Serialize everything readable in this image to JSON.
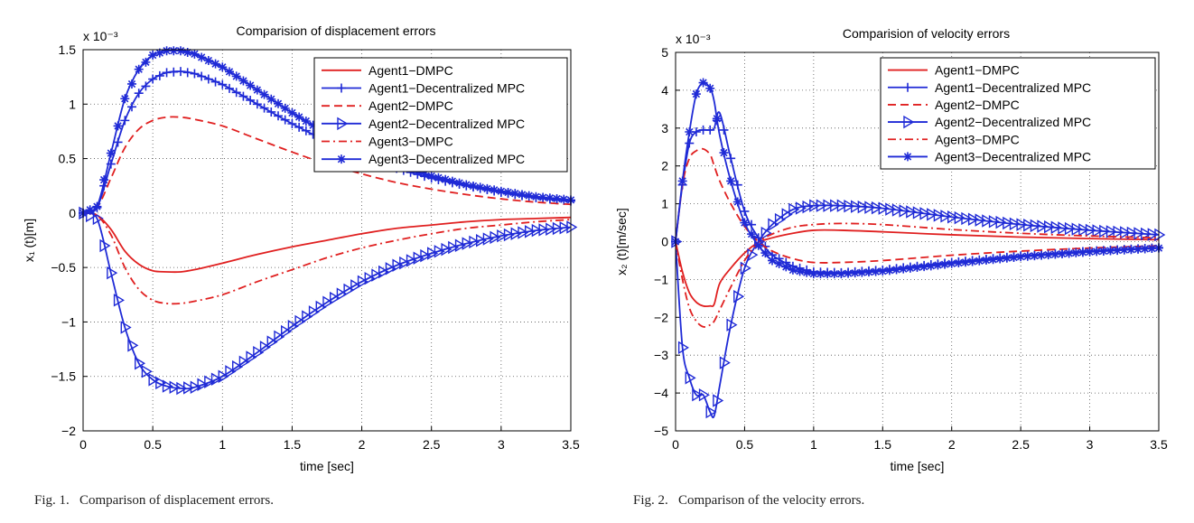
{
  "colors": {
    "dmpc": "#e02020",
    "decentralized": "#1f2ad6",
    "grid": "#555555"
  },
  "captions": {
    "fig1": "Fig. 1.   Comparison of displacement errors.",
    "fig2": "Fig. 2.   Comparison of the velocity errors."
  },
  "chart_data": [
    {
      "type": "line",
      "title": "Comparision of displacement errors",
      "xlabel": "time [sec]",
      "ylabel": "x₁ (t)[m]",
      "exponent_label": "x 10⁻³",
      "xlim": [
        0,
        3.5
      ],
      "ylim": [
        -2,
        1.5
      ],
      "xticks": [
        "0",
        "0.5",
        "1",
        "1.5",
        "2",
        "2.5",
        "3",
        "3.5"
      ],
      "yticks": [
        "-2",
        "-1.5",
        "-1",
        "-0.5",
        "0",
        "0.5",
        "1",
        "1.5"
      ],
      "grid": true,
      "legend_position": "top-right",
      "x": [
        0,
        0.1,
        0.2,
        0.3,
        0.4,
        0.5,
        0.6,
        0.7,
        0.8,
        1.0,
        1.25,
        1.5,
        1.75,
        2.0,
        2.25,
        2.5,
        2.75,
        3.0,
        3.25,
        3.5
      ],
      "series": [
        {
          "name": "Agent1−DMPC",
          "style": "solid",
          "marker": "none",
          "color": "#e02020",
          "values": [
            0,
            -0.02,
            -0.15,
            -0.35,
            -0.47,
            -0.53,
            -0.54,
            -0.54,
            -0.52,
            -0.46,
            -0.38,
            -0.31,
            -0.25,
            -0.19,
            -0.14,
            -0.11,
            -0.08,
            -0.06,
            -0.05,
            -0.04
          ]
        },
        {
          "name": "Agent1−Decentralized MPC",
          "style": "solid",
          "marker": "plus",
          "color": "#1f2ad6",
          "values": [
            0,
            0.05,
            0.45,
            0.85,
            1.1,
            1.23,
            1.29,
            1.3,
            1.28,
            1.18,
            1.0,
            0.82,
            0.66,
            0.52,
            0.41,
            0.32,
            0.25,
            0.19,
            0.14,
            0.11
          ]
        },
        {
          "name": "Agent2−DMPC",
          "style": "dashed",
          "marker": "none",
          "color": "#e02020",
          "values": [
            0,
            0.05,
            0.32,
            0.6,
            0.77,
            0.85,
            0.88,
            0.88,
            0.86,
            0.8,
            0.68,
            0.56,
            0.45,
            0.36,
            0.28,
            0.22,
            0.17,
            0.13,
            0.1,
            0.08
          ]
        },
        {
          "name": "Agent2−Decentralized MPC",
          "style": "solid",
          "marker": "triangle",
          "color": "#1f2ad6",
          "values": [
            0,
            -0.05,
            -0.55,
            -1.05,
            -1.38,
            -1.53,
            -1.59,
            -1.61,
            -1.6,
            -1.5,
            -1.28,
            -1.04,
            -0.82,
            -0.63,
            -0.48,
            -0.37,
            -0.28,
            -0.21,
            -0.16,
            -0.13
          ]
        },
        {
          "name": "Agent3−DMPC",
          "style": "dashdot",
          "marker": "none",
          "color": "#e02020",
          "values": [
            0,
            -0.02,
            -0.2,
            -0.5,
            -0.7,
            -0.8,
            -0.83,
            -0.83,
            -0.81,
            -0.75,
            -0.63,
            -0.52,
            -0.41,
            -0.32,
            -0.25,
            -0.19,
            -0.14,
            -0.11,
            -0.08,
            -0.06
          ]
        },
        {
          "name": "Agent3−Decentralized MPC",
          "style": "solid",
          "marker": "star",
          "color": "#1f2ad6",
          "values": [
            0,
            0.06,
            0.55,
            1.05,
            1.32,
            1.45,
            1.49,
            1.49,
            1.46,
            1.34,
            1.13,
            0.92,
            0.73,
            0.57,
            0.44,
            0.34,
            0.26,
            0.2,
            0.15,
            0.12
          ]
        }
      ]
    },
    {
      "type": "line",
      "title": "Comparision of velocity errors",
      "xlabel": "time [sec]",
      "ylabel": "x₂ (t)[m/sec]",
      "exponent_label": "x 10⁻³",
      "xlim": [
        0,
        3.5
      ],
      "ylim": [
        -5,
        5
      ],
      "xticks": [
        "0",
        "0.5",
        "1",
        "1.5",
        "2",
        "2.5",
        "3",
        "3.5"
      ],
      "yticks": [
        "-5",
        "-4",
        "-3",
        "-2",
        "-1",
        "0",
        "1",
        "2",
        "3",
        "4",
        "5"
      ],
      "grid": true,
      "legend_position": "top-right",
      "x": [
        0,
        0.05,
        0.1,
        0.15,
        0.2,
        0.25,
        0.28,
        0.32,
        0.4,
        0.5,
        0.6,
        0.7,
        0.85,
        1.0,
        1.2,
        1.5,
        2.0,
        2.5,
        3.0,
        3.5
      ],
      "series": [
        {
          "name": "Agent1−DMPC",
          "style": "solid",
          "marker": "none",
          "color": "#e02020",
          "values": [
            0,
            -0.8,
            -1.35,
            -1.6,
            -1.7,
            -1.7,
            -1.65,
            -1.1,
            -0.7,
            -0.3,
            -0.02,
            0.1,
            0.22,
            0.3,
            0.3,
            0.26,
            0.18,
            0.12,
            0.08,
            0.05
          ]
        },
        {
          "name": "Agent1−Decentralized MPC",
          "style": "solid",
          "marker": "plus",
          "color": "#1f2ad6",
          "values": [
            0,
            1.5,
            2.6,
            2.9,
            2.95,
            2.95,
            3.0,
            3.4,
            2.2,
            0.8,
            0.1,
            -0.35,
            -0.65,
            -0.8,
            -0.82,
            -0.75,
            -0.55,
            -0.38,
            -0.25,
            -0.16
          ]
        },
        {
          "name": "Agent2−DMPC",
          "style": "dashed",
          "marker": "none",
          "color": "#e02020",
          "values": [
            0,
            1.5,
            2.2,
            2.4,
            2.45,
            2.3,
            2.0,
            1.6,
            1.0,
            0.4,
            0.0,
            -0.25,
            -0.45,
            -0.55,
            -0.55,
            -0.5,
            -0.36,
            -0.25,
            -0.17,
            -0.11
          ]
        },
        {
          "name": "Agent2−Decentralized MPC",
          "style": "solid",
          "marker": "triangle",
          "color": "#1f2ad6",
          "values": [
            0,
            -2.8,
            -3.6,
            -4.05,
            -4.05,
            -4.5,
            -4.6,
            -3.8,
            -2.2,
            -0.7,
            0.0,
            0.45,
            0.85,
            0.95,
            0.95,
            0.88,
            0.65,
            0.45,
            0.3,
            0.18
          ]
        },
        {
          "name": "Agent3−DMPC",
          "style": "dashdot",
          "marker": "none",
          "color": "#e02020",
          "values": [
            0,
            -1.0,
            -1.75,
            -2.1,
            -2.25,
            -2.2,
            -2.1,
            -1.8,
            -1.2,
            -0.5,
            -0.02,
            0.2,
            0.38,
            0.45,
            0.48,
            0.45,
            0.32,
            0.22,
            0.15,
            0.1
          ]
        },
        {
          "name": "Agent3−Decentralized MPC",
          "style": "solid",
          "marker": "star",
          "color": "#1f2ad6",
          "values": [
            0,
            1.6,
            2.9,
            3.9,
            4.2,
            4.05,
            3.7,
            2.8,
            1.6,
            0.5,
            -0.1,
            -0.5,
            -0.75,
            -0.85,
            -0.85,
            -0.78,
            -0.58,
            -0.4,
            -0.27,
            -0.17
          ]
        }
      ]
    }
  ]
}
